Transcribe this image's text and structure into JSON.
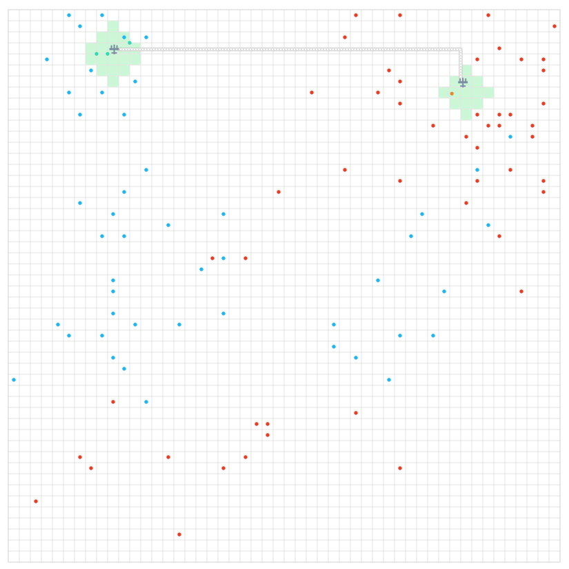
{
  "game": {
    "grid": {
      "cols": 50,
      "rows": 50
    },
    "colors": {
      "grid_line": "#e3e3e3",
      "border": "#d0d0d0",
      "blue_dot": "#1cb8f6",
      "red_dot": "#f03a1f",
      "zone_fill": "#ccf7d6",
      "zone_dot": "#36d7b7",
      "zone_red_dot": "#e08a3a",
      "path": "#c3c3c3",
      "unit": "#7a8da0"
    },
    "zones": [
      {
        "name": "base-left",
        "cells": [
          [
            9,
            1
          ],
          [
            9,
            2
          ],
          [
            8,
            2
          ],
          [
            10,
            2
          ],
          [
            7,
            3
          ],
          [
            8,
            3
          ],
          [
            9,
            3
          ],
          [
            10,
            3
          ],
          [
            11,
            3
          ],
          [
            7,
            4
          ],
          [
            8,
            4
          ],
          [
            9,
            4
          ],
          [
            10,
            4
          ],
          [
            11,
            4
          ],
          [
            8,
            5
          ],
          [
            9,
            5
          ],
          [
            10,
            5
          ],
          [
            9,
            6
          ]
        ]
      },
      {
        "name": "base-right",
        "cells": [
          [
            41,
            5
          ],
          [
            40,
            6
          ],
          [
            41,
            6
          ],
          [
            42,
            6
          ],
          [
            39,
            7
          ],
          [
            40,
            7
          ],
          [
            41,
            7
          ],
          [
            42,
            7
          ],
          [
            43,
            7
          ],
          [
            40,
            8
          ],
          [
            41,
            8
          ],
          [
            42,
            8
          ],
          [
            41,
            9
          ]
        ]
      }
    ],
    "units": [
      {
        "name": "aircraft-left",
        "cell": [
          9.6,
          3.6
        ]
      },
      {
        "name": "aircraft-right",
        "cell": [
          41.2,
          6.6
        ]
      }
    ],
    "path": {
      "points": [
        [
          10.0,
          3.6
        ],
        [
          41.0,
          3.6
        ],
        [
          41.0,
          6.4
        ]
      ]
    },
    "blue_dots": [
      [
        5.5,
        0.5
      ],
      [
        8.5,
        0.5
      ],
      [
        6.5,
        1.5
      ],
      [
        12.5,
        2.5
      ],
      [
        10.5,
        2.5
      ],
      [
        3.5,
        4.5
      ],
      [
        7.5,
        5.5
      ],
      [
        11.5,
        6.5
      ],
      [
        5.5,
        7.5
      ],
      [
        8.5,
        7.5
      ],
      [
        6.5,
        9.5
      ],
      [
        10.5,
        9.5
      ],
      [
        12.5,
        14.5
      ],
      [
        10.5,
        16.5
      ],
      [
        6.5,
        17.5
      ],
      [
        9.5,
        18.5
      ],
      [
        14.5,
        19.5
      ],
      [
        19.5,
        18.5
      ],
      [
        8.5,
        20.5
      ],
      [
        10.5,
        20.5
      ],
      [
        19.5,
        22.5
      ],
      [
        17.5,
        23.5
      ],
      [
        9.5,
        24.5
      ],
      [
        9.5,
        25.5
      ],
      [
        9.5,
        27.5
      ],
      [
        19.5,
        27.5
      ],
      [
        4.5,
        28.5
      ],
      [
        11.5,
        28.5
      ],
      [
        15.5,
        28.5
      ],
      [
        5.5,
        29.5
      ],
      [
        8.5,
        29.5
      ],
      [
        9.5,
        31.5
      ],
      [
        10.5,
        32.5
      ],
      [
        0.5,
        33.5
      ],
      [
        12.5,
        35.5
      ],
      [
        37.5,
        18.5
      ],
      [
        42.5,
        14.5
      ],
      [
        45.5,
        11.5
      ],
      [
        43.5,
        19.5
      ],
      [
        36.5,
        20.5
      ],
      [
        33.5,
        24.5
      ],
      [
        39.5,
        25.5
      ],
      [
        29.5,
        28.5
      ],
      [
        35.5,
        29.5
      ],
      [
        38.5,
        29.5
      ],
      [
        29.5,
        30.5
      ],
      [
        31.5,
        31.5
      ],
      [
        34.5,
        33.5
      ]
    ],
    "red_dots": [
      [
        31.5,
        0.5
      ],
      [
        35.5,
        0.5
      ],
      [
        43.5,
        0.5
      ],
      [
        49.5,
        1.5
      ],
      [
        30.5,
        2.5
      ],
      [
        44.5,
        3.5
      ],
      [
        42.5,
        4.5
      ],
      [
        46.5,
        4.5
      ],
      [
        48.5,
        4.5
      ],
      [
        34.5,
        5.5
      ],
      [
        48.5,
        5.5
      ],
      [
        35.5,
        6.5
      ],
      [
        27.5,
        7.5
      ],
      [
        33.5,
        7.5
      ],
      [
        35.5,
        8.5
      ],
      [
        48.5,
        8.5
      ],
      [
        42.5,
        9.5
      ],
      [
        44.5,
        9.5
      ],
      [
        45.5,
        9.5
      ],
      [
        38.5,
        10.5
      ],
      [
        43.5,
        10.5
      ],
      [
        44.5,
        10.5
      ],
      [
        47.5,
        10.5
      ],
      [
        41.5,
        11.5
      ],
      [
        47.5,
        11.5
      ],
      [
        42.5,
        12.5
      ],
      [
        30.5,
        14.5
      ],
      [
        45.5,
        14.5
      ],
      [
        35.5,
        15.5
      ],
      [
        42.5,
        15.5
      ],
      [
        48.5,
        15.5
      ],
      [
        24.5,
        16.5
      ],
      [
        48.5,
        16.5
      ],
      [
        41.5,
        17.5
      ],
      [
        44.5,
        20.5
      ],
      [
        18.5,
        22.5
      ],
      [
        21.5,
        22.5
      ],
      [
        46.5,
        25.5
      ],
      [
        9.5,
        35.5
      ],
      [
        31.5,
        36.5
      ],
      [
        22.5,
        37.5
      ],
      [
        23.5,
        37.5
      ],
      [
        23.5,
        38.5
      ],
      [
        6.5,
        40.5
      ],
      [
        14.5,
        40.5
      ],
      [
        21.5,
        40.5
      ],
      [
        7.5,
        41.5
      ],
      [
        19.5,
        41.5
      ],
      [
        35.5,
        41.5
      ],
      [
        2.5,
        44.5
      ],
      [
        15.5,
        47.5
      ]
    ],
    "zone_dots": [
      [
        8.0,
        4.0
      ],
      [
        9.0,
        4.0
      ],
      [
        11.0,
        3.0
      ]
    ],
    "zone_red_dots": [
      [
        40.2,
        7.6
      ]
    ]
  }
}
